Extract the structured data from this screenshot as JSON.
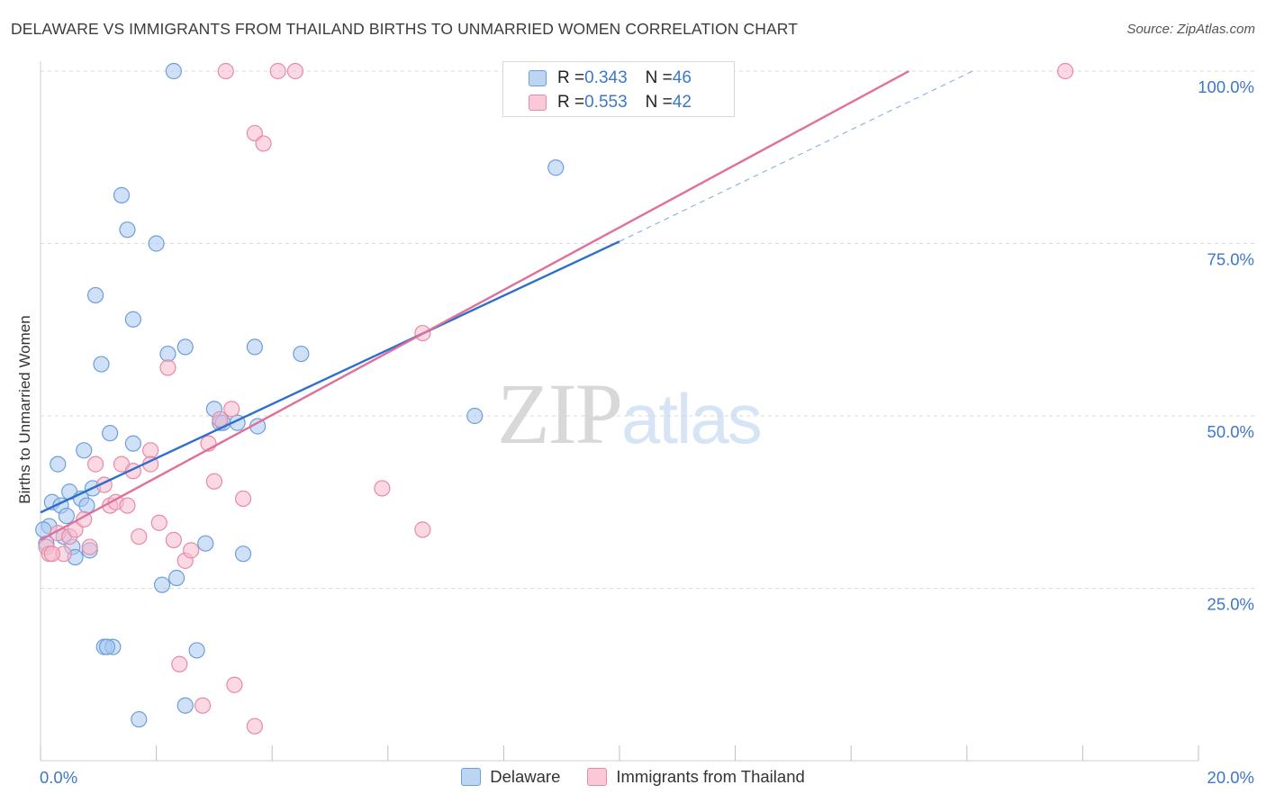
{
  "title": "DELAWARE VS IMMIGRANTS FROM THAILAND BIRTHS TO UNMARRIED WOMEN CORRELATION CHART",
  "source": "Source: ZipAtlas.com",
  "watermark": {
    "zip": "ZIP",
    "atlas": "atlas"
  },
  "legend": {
    "rows": [
      {
        "r_label": "R = ",
        "r_value": "0.343",
        "n_label": "N = ",
        "n_value": "46"
      },
      {
        "r_label": "R = ",
        "r_value": "0.553",
        "n_label": "N = ",
        "n_value": "42"
      }
    ]
  },
  "bottom_legend": [
    "Delaware",
    "Immigrants from Thailand"
  ],
  "colors": {
    "delaware_fill": "#a9c9f0",
    "delaware_stroke": "#6a9fdc",
    "delaware_line": "#2e6fcc",
    "thailand_fill": "#f7b9cc",
    "thailand_stroke": "#e889a8",
    "thailand_line": "#e0709a",
    "tick_label": "#3c78c8",
    "grid": "#d9d9d9"
  },
  "chart_data": {
    "type": "scatter",
    "title": "DELAWARE VS IMMIGRANTS FROM THAILAND BIRTHS TO UNMARRIED WOMEN CORRELATION CHART",
    "xlabel": "",
    "ylabel": "Births to Unmarried Women",
    "xlim": [
      0,
      20
    ],
    "ylim": [
      0,
      100
    ],
    "x_ticks": [
      "0.0%",
      "20.0%"
    ],
    "y_ticks": [
      "25.0%",
      "50.0%",
      "75.0%",
      "100.0%"
    ],
    "grid": true,
    "legend_position": "top-center",
    "series": [
      {
        "name": "Delaware",
        "r": 0.343,
        "n": 46,
        "points": [
          [
            0.1,
            31.5
          ],
          [
            0.15,
            34
          ],
          [
            0.2,
            37.5
          ],
          [
            0.3,
            43
          ],
          [
            0.35,
            37
          ],
          [
            0.4,
            32.5
          ],
          [
            0.45,
            35.5
          ],
          [
            0.5,
            39
          ],
          [
            0.55,
            31
          ],
          [
            0.6,
            29.5
          ],
          [
            0.7,
            38
          ],
          [
            0.75,
            45
          ],
          [
            0.8,
            37
          ],
          [
            0.85,
            30.5
          ],
          [
            0.9,
            39.5
          ],
          [
            0.95,
            67.5
          ],
          [
            1.05,
            57.5
          ],
          [
            1.1,
            16.5
          ],
          [
            1.2,
            47.5
          ],
          [
            1.25,
            16.5
          ],
          [
            1.4,
            82
          ],
          [
            1.5,
            77
          ],
          [
            1.6,
            46
          ],
          [
            1.6,
            64
          ],
          [
            1.7,
            6
          ],
          [
            2.0,
            75
          ],
          [
            2.1,
            25.5
          ],
          [
            2.2,
            59
          ],
          [
            2.3,
            100
          ],
          [
            2.35,
            26.5
          ],
          [
            2.5,
            60
          ],
          [
            2.5,
            8
          ],
          [
            2.7,
            16
          ],
          [
            2.85,
            31.5
          ],
          [
            3.0,
            51
          ],
          [
            3.1,
            49
          ],
          [
            3.15,
            49
          ],
          [
            3.4,
            49
          ],
          [
            3.5,
            30
          ],
          [
            3.7,
            60
          ],
          [
            3.75,
            48.5
          ],
          [
            4.5,
            59
          ],
          [
            7.5,
            50
          ],
          [
            8.9,
            86
          ],
          [
            1.15,
            16.5
          ],
          [
            0.05,
            33.5
          ]
        ]
      },
      {
        "name": "Immigrants from Thailand",
        "r": 0.553,
        "n": 42,
        "points": [
          [
            0.1,
            31
          ],
          [
            0.15,
            30
          ],
          [
            0.3,
            33
          ],
          [
            0.4,
            30
          ],
          [
            0.5,
            32.5
          ],
          [
            0.6,
            33.5
          ],
          [
            0.75,
            35
          ],
          [
            0.85,
            31
          ],
          [
            0.95,
            43
          ],
          [
            1.1,
            40
          ],
          [
            1.2,
            37
          ],
          [
            1.3,
            37.5
          ],
          [
            1.4,
            43
          ],
          [
            1.5,
            37
          ],
          [
            1.6,
            42
          ],
          [
            1.7,
            32.5
          ],
          [
            1.9,
            45
          ],
          [
            1.9,
            43
          ],
          [
            2.05,
            34.5
          ],
          [
            2.2,
            57
          ],
          [
            2.3,
            32
          ],
          [
            2.4,
            14
          ],
          [
            2.5,
            29
          ],
          [
            2.6,
            30.5
          ],
          [
            2.8,
            8
          ],
          [
            2.9,
            46
          ],
          [
            3.0,
            40.5
          ],
          [
            3.1,
            49.5
          ],
          [
            3.3,
            51
          ],
          [
            3.35,
            11
          ],
          [
            3.5,
            38
          ],
          [
            3.7,
            5
          ],
          [
            3.7,
            91
          ],
          [
            3.85,
            89.5
          ],
          [
            3.2,
            100
          ],
          [
            4.1,
            100
          ],
          [
            4.4,
            100
          ],
          [
            5.9,
            39.5
          ],
          [
            6.6,
            33.5
          ],
          [
            6.6,
            62
          ],
          [
            17.7,
            100
          ],
          [
            0.2,
            30
          ]
        ]
      }
    ],
    "trendlines": [
      {
        "series": "Delaware",
        "from": [
          0,
          36.0
        ],
        "to": [
          10,
          75.3
        ],
        "dashed_extension_to": [
          16.1,
          100
        ]
      },
      {
        "series": "Immigrants from Thailand",
        "from": [
          0,
          32.0
        ],
        "to": [
          15,
          100
        ]
      }
    ]
  }
}
